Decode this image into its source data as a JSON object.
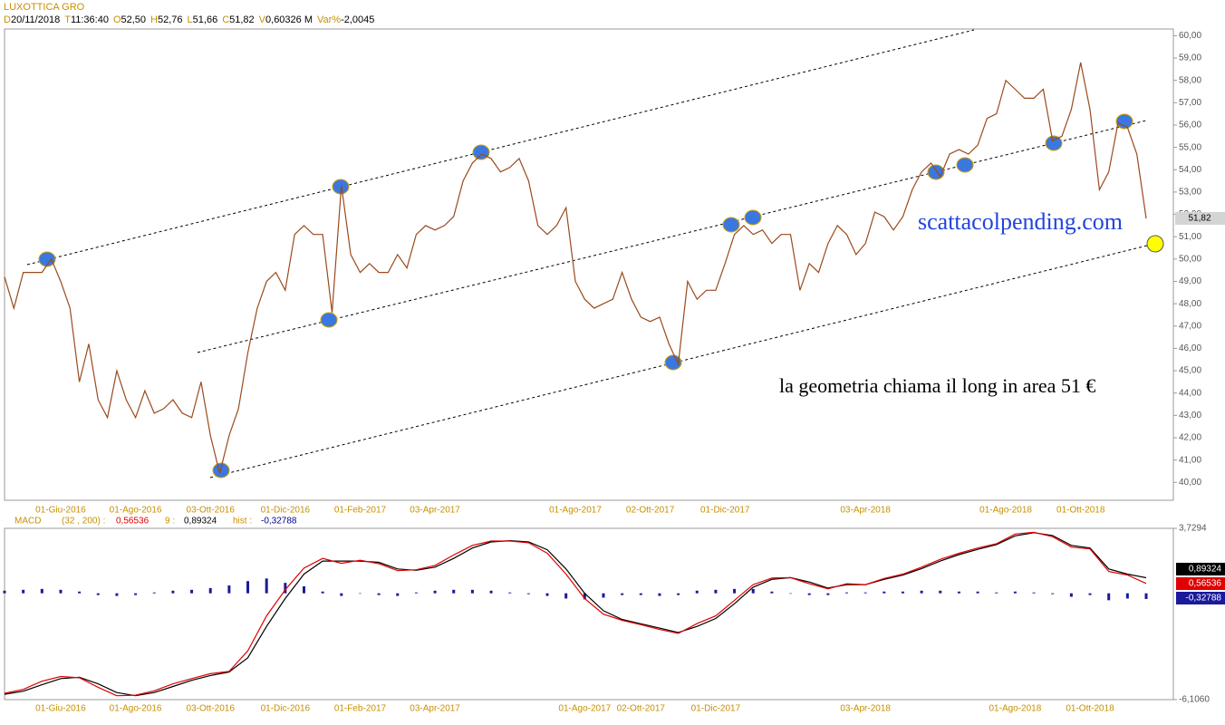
{
  "header": {
    "title": "LUXOTTICA GRO",
    "fields": [
      {
        "key": "D",
        "value": "20/11/2018"
      },
      {
        "key": "T",
        "value": "11:36:40"
      },
      {
        "key": "O",
        "value": "52,50"
      },
      {
        "key": "H",
        "value": "52,76"
      },
      {
        "key": "L",
        "value": "51,66"
      },
      {
        "key": "C",
        "value": "51,82"
      },
      {
        "key": "V",
        "value": "0,60326 M"
      },
      {
        "key": "Var%",
        "value": "-2,0045"
      }
    ]
  },
  "chart_data": [
    {
      "type": "line",
      "color": "#9a4a1c",
      "grid": false,
      "annotations": [
        "scattacolpending.com",
        "la geometria chiama il long in area 51 €"
      ],
      "categories": [
        null,
        null,
        null,
        null,
        null,
        null,
        "01-Giu-2016",
        null,
        null,
        null,
        null,
        null,
        null,
        null,
        "01-Ago-2016",
        null,
        null,
        null,
        null,
        null,
        null,
        null,
        "03-Ott-2016",
        null,
        null,
        null,
        null,
        null,
        null,
        null,
        "01-Dic-2016",
        null,
        null,
        null,
        null,
        null,
        null,
        null,
        "01-Feb-2017",
        null,
        null,
        null,
        null,
        null,
        null,
        null,
        "03-Apr-2017",
        null,
        null,
        null,
        null,
        null,
        null,
        null,
        null,
        null,
        null,
        null,
        null,
        null,
        null,
        "01-Ago-2017",
        null,
        null,
        null,
        null,
        null,
        null,
        null,
        "02-Ott-2017",
        null,
        null,
        null,
        null,
        null,
        null,
        null,
        "01-Dic-2017",
        null,
        null,
        null,
        null,
        null,
        null,
        null,
        null,
        null,
        null,
        null,
        null,
        null,
        null,
        "03-Apr-2018",
        null,
        null,
        null,
        null,
        null,
        null,
        null,
        null,
        null,
        null,
        null,
        null,
        null,
        null,
        "01-Ago-2018",
        null,
        null,
        null,
        null,
        null,
        null,
        null,
        "01-Ott-2018",
        null,
        null,
        null,
        null,
        null,
        null,
        null
      ],
      "values": [
        49.2,
        47.8,
        49.4,
        49.4,
        49.4,
        50.0,
        49.0,
        47.8,
        44.5,
        46.2,
        43.7,
        42.9,
        45.0,
        43.7,
        42.9,
        44.1,
        43.1,
        43.3,
        43.7,
        43.1,
        42.9,
        44.5,
        42.1,
        40.4,
        42.1,
        43.3,
        45.8,
        47.8,
        49.0,
        49.4,
        48.6,
        51.1,
        51.5,
        51.1,
        51.1,
        47.6,
        53.3,
        50.2,
        49.4,
        49.8,
        49.4,
        49.4,
        50.2,
        49.6,
        51.1,
        51.5,
        51.3,
        51.5,
        51.9,
        53.5,
        54.3,
        54.7,
        54.5,
        53.9,
        54.1,
        54.5,
        53.5,
        51.5,
        51.1,
        51.5,
        52.3,
        49.0,
        48.2,
        47.8,
        48.0,
        48.2,
        49.4,
        48.2,
        47.4,
        47.2,
        47.4,
        46.2,
        45.3,
        49.0,
        48.2,
        48.6,
        48.6,
        49.8,
        51.1,
        51.5,
        51.1,
        51.3,
        50.7,
        51.1,
        51.1,
        48.6,
        49.8,
        49.4,
        50.7,
        51.5,
        51.1,
        50.2,
        50.7,
        52.1,
        51.9,
        51.3,
        51.9,
        53.1,
        53.9,
        54.3,
        53.7,
        54.7,
        54.9,
        54.7,
        55.1,
        56.3,
        56.5,
        58.0,
        57.6,
        57.2,
        57.2,
        57.6,
        55.3,
        55.5,
        56.7,
        58.8,
        56.7,
        53.1,
        53.9,
        56.1,
        55.9,
        54.7,
        51.82
      ],
      "ylim": [
        39.2,
        60.3
      ],
      "yticks": [
        {
          "value": 40,
          "label": "40,00"
        },
        {
          "value": 41,
          "label": "41,00"
        },
        {
          "value": 42,
          "label": "42,00"
        },
        {
          "value": 43,
          "label": "43,00"
        },
        {
          "value": 44,
          "label": "44,00"
        },
        {
          "value": 45,
          "label": "45,00"
        },
        {
          "value": 46,
          "label": "46,00"
        },
        {
          "value": 47,
          "label": "47,00"
        },
        {
          "value": 48,
          "label": "48,00"
        },
        {
          "value": 49,
          "label": "49,00"
        },
        {
          "value": 50,
          "label": "50,00"
        },
        {
          "value": 51,
          "label": "51,00"
        },
        {
          "value": 52,
          "label": "52,00"
        },
        {
          "value": 53,
          "label": "53,00"
        },
        {
          "value": 54,
          "label": "54,00"
        },
        {
          "value": 55,
          "label": "55,00"
        },
        {
          "value": 56,
          "label": "56,00"
        },
        {
          "value": 57,
          "label": "57,00"
        },
        {
          "value": 58,
          "label": "58,00"
        },
        {
          "value": 59,
          "label": "59,00"
        },
        {
          "value": 60,
          "label": "60,00"
        }
      ]
    },
    {
      "type": "line",
      "title": "MACD",
      "grid": false,
      "categories": [
        null,
        null,
        null,
        "01-Giu-2016",
        null,
        null,
        null,
        "01-Ago-2016",
        null,
        null,
        null,
        "03-Ott-2016",
        null,
        null,
        null,
        "01-Dic-2016",
        null,
        null,
        null,
        "01-Feb-2017",
        null,
        null,
        null,
        "03-Apr-2017",
        null,
        null,
        null,
        null,
        null,
        null,
        null,
        "01-Ago-2017",
        null,
        null,
        "02-Ott-2017",
        null,
        null,
        null,
        "01-Dic-2017",
        null,
        null,
        null,
        null,
        null,
        null,
        null,
        "03-Apr-2018",
        null,
        null,
        null,
        null,
        null,
        null,
        null,
        "01-Ago-2018",
        null,
        null,
        null,
        "01-Ott-2018",
        null,
        null,
        null
      ],
      "series": [
        {
          "name": "(32 , 200) :",
          "color": "#e00000",
          "last_label": "0,56536",
          "values": [
            -5.74,
            -5.52,
            -5.05,
            -4.78,
            -4.85,
            -5.4,
            -5.88,
            -5.85,
            -5.6,
            -5.2,
            -4.9,
            -4.62,
            -4.48,
            -3.3,
            -1.3,
            0.2,
            1.45,
            2.0,
            1.72,
            1.9,
            1.7,
            1.3,
            1.35,
            1.6,
            2.2,
            2.75,
            3.0,
            3.0,
            2.9,
            2.3,
            1.1,
            -0.3,
            -1.2,
            -1.55,
            -1.8,
            -2.08,
            -2.3,
            -1.74,
            -1.3,
            -0.4,
            0.5,
            0.87,
            0.9,
            0.55,
            0.26,
            0.55,
            0.5,
            0.85,
            1.1,
            1.5,
            1.95,
            2.3,
            2.6,
            2.85,
            3.4,
            3.5,
            3.25,
            2.65,
            2.55,
            1.25,
            1.05,
            0.56536
          ]
        },
        {
          "name": "9 :",
          "color": "#000000",
          "last_label": "0,89324",
          "values": [
            -5.8,
            -5.62,
            -5.25,
            -4.9,
            -4.82,
            -5.2,
            -5.7,
            -5.88,
            -5.7,
            -5.35,
            -5.0,
            -4.72,
            -4.52,
            -3.7,
            -1.9,
            -0.3,
            1.1,
            1.85,
            1.85,
            1.85,
            1.78,
            1.4,
            1.32,
            1.5,
            2.0,
            2.6,
            2.95,
            3.02,
            2.95,
            2.5,
            1.4,
            0.0,
            -1.0,
            -1.5,
            -1.75,
            -2.0,
            -2.25,
            -1.9,
            -1.45,
            -0.6,
            0.35,
            0.8,
            0.9,
            0.65,
            0.3,
            0.5,
            0.5,
            0.8,
            1.05,
            1.42,
            1.85,
            2.22,
            2.52,
            2.8,
            3.3,
            3.48,
            3.32,
            2.75,
            2.6,
            1.4,
            1.1,
            0.89324
          ]
        },
        {
          "name": "hist :",
          "type": "bar",
          "color": "#1a1a9a",
          "last_label": "-0,32788",
          "values": [
            0.15,
            0.2,
            0.25,
            0.2,
            0.1,
            -0.1,
            -0.15,
            -0.1,
            0.05,
            0.15,
            0.2,
            0.3,
            0.45,
            0.7,
            0.85,
            0.6,
            0.4,
            0.1,
            -0.15,
            0.0,
            -0.1,
            -0.15,
            0.05,
            0.15,
            0.2,
            0.2,
            0.15,
            0.05,
            -0.05,
            -0.15,
            -0.3,
            -0.35,
            -0.25,
            -0.1,
            -0.1,
            -0.15,
            -0.1,
            0.15,
            0.2,
            0.25,
            0.25,
            0.1,
            0.0,
            -0.1,
            -0.1,
            0.05,
            0.05,
            0.1,
            0.1,
            0.15,
            0.15,
            0.1,
            0.1,
            0.05,
            0.1,
            0.05,
            -0.05,
            -0.2,
            -0.1,
            -0.4,
            -0.3,
            -0.32788
          ]
        }
      ],
      "ylim": [
        -6.106,
        3.7294
      ],
      "yticks": [
        {
          "value": 3.7294,
          "label": "3,7294"
        },
        {
          "value": -6.106,
          "label": "-6,1060"
        }
      ]
    }
  ]
}
